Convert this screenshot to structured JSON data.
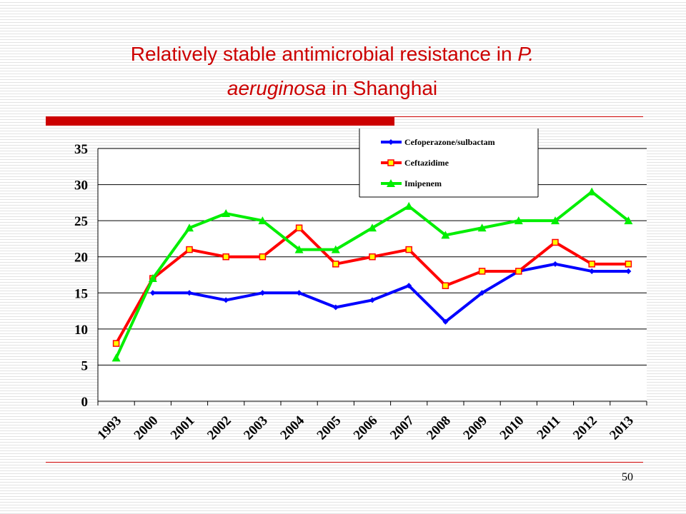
{
  "title": {
    "line1_text": "Relatively stable antimicrobial resistance in ",
    "line1_italic": "P.",
    "line2_italic": "aeruginosa",
    "line2_text": " in Shanghai",
    "color": "#cc0000"
  },
  "page_number": "50",
  "chart_data": {
    "type": "line",
    "categories": [
      "1993",
      "2000",
      "2001",
      "2002",
      "2003",
      "2004",
      "2005",
      "2006",
      "2007",
      "2008",
      "2009",
      "2010",
      "2011",
      "2012",
      "2013"
    ],
    "ylim": [
      0,
      35
    ],
    "yticks": [
      "0",
      "5",
      "10",
      "15",
      "20",
      "25",
      "30",
      "35"
    ],
    "grid": true,
    "legend_position": "top-right",
    "series": [
      {
        "name": "Cefoperazone/sulbactam",
        "color": "#0000ff",
        "marker": "diamond",
        "values": [
          null,
          15,
          15,
          14,
          15,
          15,
          13,
          14,
          16,
          11,
          15,
          18,
          19,
          18,
          18
        ]
      },
      {
        "name": "Ceftazidime",
        "color": "#ff0000",
        "marker": "square",
        "values": [
          8,
          17,
          21,
          20,
          20,
          24,
          19,
          20,
          21,
          16,
          18,
          18,
          22,
          19,
          19
        ]
      },
      {
        "name": "Imipenem",
        "color": "#00ee00",
        "marker": "triangle",
        "values": [
          6,
          17,
          24,
          26,
          25,
          21,
          21,
          24,
          27,
          23,
          24,
          25,
          25,
          29,
          25
        ]
      }
    ]
  }
}
